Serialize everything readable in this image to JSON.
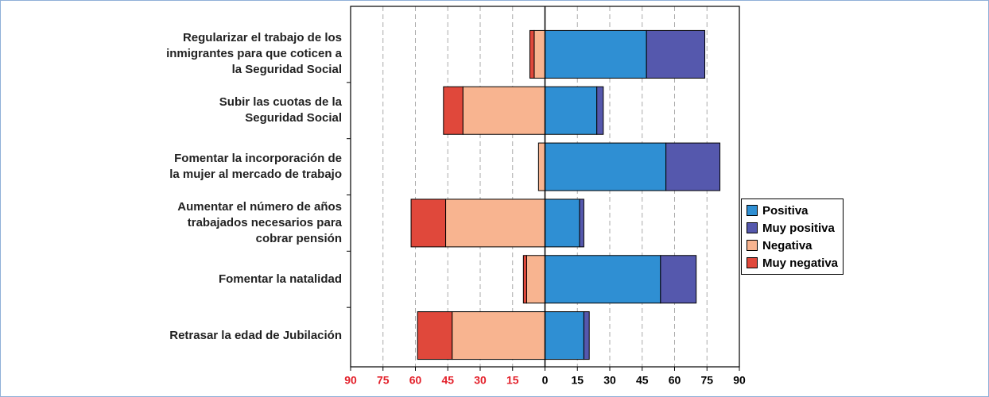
{
  "chart_data": {
    "type": "diverging-bar",
    "categories": [
      "Regularizar el trabajo de los\ninmigrantes para que coticen a\nla Seguridad Social",
      "Subir las cuotas de la\nSeguridad Social",
      "Fomentar la incorporación de\nla mujer al mercado de trabajo",
      "Aumentar el número de años\ntrabajados necesarios para\ncobrar pensión",
      "Fomentar la natalidad",
      "Retrasar la edad de Jubilación"
    ],
    "series": [
      {
        "name": "Positiva",
        "color": "#2f8fd3",
        "values": [
          47,
          24,
          56,
          16,
          53.5,
          18
        ]
      },
      {
        "name": "Muy positiva",
        "color": "#5558ad",
        "values": [
          27,
          3,
          25,
          2,
          16.5,
          2.5
        ]
      },
      {
        "name": "Negativa",
        "color": "#f8b490",
        "values": [
          -5,
          -38,
          -3,
          -46,
          -8.5,
          -43
        ]
      },
      {
        "name": "Muy negativa",
        "color": "#e0483b",
        "values": [
          -2,
          -9,
          0,
          -16,
          -1.5,
          -16
        ]
      }
    ],
    "xlim": [
      -90,
      90
    ],
    "xticks": [
      {
        "value": -90,
        "label": "90"
      },
      {
        "value": -75,
        "label": "75"
      },
      {
        "value": -60,
        "label": "60"
      },
      {
        "value": -45,
        "label": "45"
      },
      {
        "value": -30,
        "label": "30"
      },
      {
        "value": -15,
        "label": "15"
      },
      0,
      15,
      30,
      45,
      60,
      75,
      90
    ],
    "grid": true,
    "legend": "right"
  }
}
